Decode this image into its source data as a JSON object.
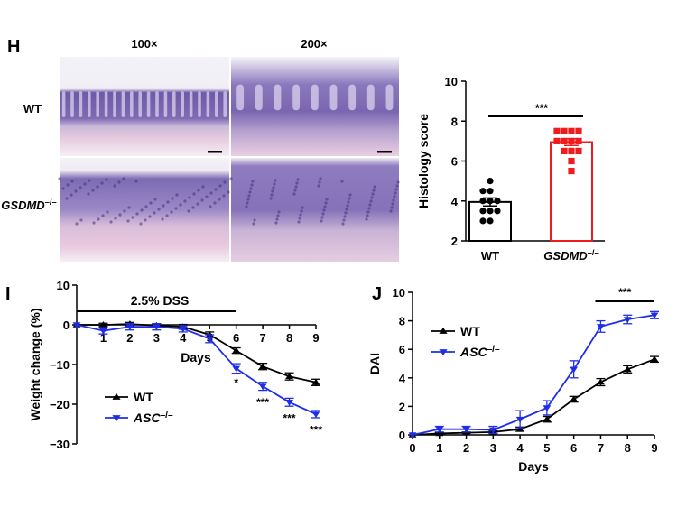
{
  "panel_h": {
    "letter": "H",
    "col_labels": [
      "100×",
      "200×"
    ],
    "row_labels": [
      {
        "main": "WT",
        "sup": ""
      },
      {
        "main": "GSDMD",
        "sup": "–/–"
      }
    ]
  },
  "panel_i": {
    "letter": "I",
    "dss_label": "2.5% DSS"
  },
  "panel_j": {
    "letter": "J"
  },
  "chart_data": [
    {
      "type": "bar",
      "panel": "H",
      "ylabel": "Histology score",
      "ylim": [
        2,
        10
      ],
      "yticks": [
        2,
        4,
        6,
        8,
        10
      ],
      "categories": [
        {
          "main": "WT",
          "sup": ""
        },
        {
          "main": "GSDMD",
          "sup": "–/–"
        }
      ],
      "values": [
        3.95,
        6.95
      ],
      "sem": [
        0.2,
        0.17
      ],
      "colors": [
        "#000000",
        "#ee1c1c"
      ],
      "points": [
        [
          5.0,
          4.5,
          4.5,
          4.0,
          4.0,
          4.0,
          3.5,
          3.5,
          3.5,
          3.0,
          3.0
        ],
        [
          7.5,
          7.5,
          7.5,
          7.5,
          7.0,
          7.0,
          7.0,
          7.0,
          6.5,
          6.5,
          6.5,
          6.0,
          5.5
        ]
      ],
      "significance": "***"
    },
    {
      "type": "line",
      "panel": "I",
      "ylabel": "Weight change (%)",
      "xlabel": "Days",
      "ylim": [
        -30,
        10
      ],
      "yticks": [
        10,
        0,
        -10,
        -20,
        -30
      ],
      "x": [
        0,
        1,
        2,
        3,
        4,
        5,
        6,
        7,
        8,
        9
      ],
      "xticks": [
        1,
        2,
        3,
        4,
        5,
        6,
        7,
        8,
        9
      ],
      "series": [
        {
          "name": "WT",
          "sup": "",
          "color": "#000000",
          "marker": "triangle-up",
          "values": [
            0,
            0,
            0.2,
            -0.2,
            -0.5,
            -2.5,
            -6.5,
            -10.5,
            -13,
            -14.5
          ],
          "err": [
            0,
            0.4,
            0.4,
            0.5,
            0.6,
            0.7,
            0.7,
            0.8,
            0.9,
            0.8
          ]
        },
        {
          "name": "ASC",
          "sup": "–/–",
          "color": "#1f2ee6",
          "marker": "triangle-down",
          "values": [
            0,
            -1.5,
            -0.5,
            -0.5,
            -1,
            -3.5,
            -11,
            -15.5,
            -19.5,
            -22.5
          ],
          "err": [
            0,
            0.8,
            0.8,
            0.8,
            0.8,
            1.0,
            1.2,
            1.0,
            1.0,
            0.9
          ]
        }
      ],
      "significance": [
        {
          "x": 6,
          "y": -14.5,
          "text": "*"
        },
        {
          "x": 7,
          "y": -19.5,
          "text": "***"
        },
        {
          "x": 8,
          "y": -23.5,
          "text": "***"
        },
        {
          "x": 9,
          "y": -26.5,
          "text": "***"
        }
      ]
    },
    {
      "type": "line",
      "panel": "J",
      "ylabel": "DAI",
      "xlabel": "Days",
      "ylim": [
        0,
        10
      ],
      "yticks": [
        0,
        2,
        4,
        6,
        8,
        10
      ],
      "x": [
        0,
        1,
        2,
        3,
        4,
        5,
        6,
        7,
        8,
        9
      ],
      "xticks": [
        0,
        1,
        2,
        3,
        4,
        5,
        6,
        7,
        8,
        9
      ],
      "series": [
        {
          "name": "WT",
          "sup": "",
          "color": "#000000",
          "marker": "triangle-up",
          "values": [
            0,
            0.1,
            0.15,
            0.2,
            0.4,
            1.1,
            2.5,
            3.7,
            4.6,
            5.3
          ],
          "err": [
            0,
            0.05,
            0.05,
            0.1,
            0.15,
            0.2,
            0.2,
            0.25,
            0.25,
            0.2
          ]
        },
        {
          "name": "ASC",
          "sup": "–/–",
          "color": "#1f2ee6",
          "marker": "triangle-down",
          "values": [
            0,
            0.4,
            0.4,
            0.35,
            1.1,
            1.9,
            4.6,
            7.6,
            8.1,
            8.4
          ],
          "err": [
            0,
            0.2,
            0.2,
            0.25,
            0.6,
            0.5,
            0.6,
            0.4,
            0.3,
            0.25
          ]
        }
      ],
      "significance": "***",
      "sig_span": [
        6.8,
        9
      ]
    }
  ]
}
